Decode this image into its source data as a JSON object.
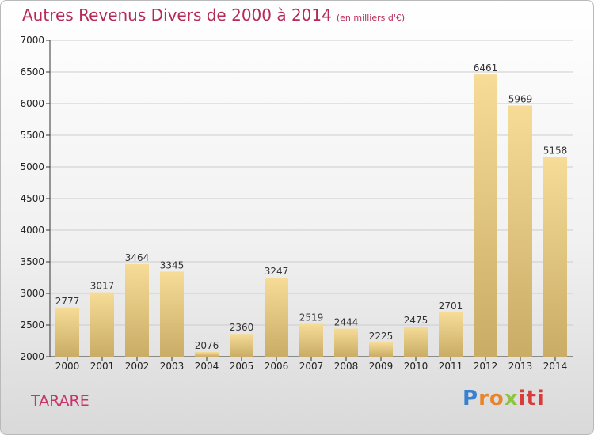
{
  "title": "Autres Revenus Divers de 2000 à 2014",
  "subtitle": "(en milliers d'€)",
  "commune": "TARARE",
  "logo": "Proxiti",
  "colors": {
    "title": "#b62b56",
    "bar_light": "#f6dc97",
    "bar_dark": "#c9ac66",
    "axis": "#333333",
    "grid": "#cccccc",
    "logo_p": "#3a7fd0",
    "logo_ro": "#e8852a",
    "logo_x": "#8cc63f",
    "logo_iti": "#d93a3a"
  },
  "chart_data": {
    "type": "bar",
    "title": "Autres Revenus Divers de 2000 à 2014",
    "categories": [
      "2000",
      "2001",
      "2002",
      "2003",
      "2004",
      "2005",
      "2006",
      "2007",
      "2008",
      "2009",
      "2010",
      "2011",
      "2012",
      "2013",
      "2014"
    ],
    "values": [
      2777,
      3017,
      3464,
      3345,
      2076,
      2360,
      3247,
      2519,
      2444,
      2225,
      2475,
      2701,
      6461,
      5969,
      5158
    ],
    "ylim": [
      2000,
      7000
    ],
    "yticks": [
      2000,
      2500,
      3000,
      3500,
      4000,
      4500,
      5000,
      5500,
      6000,
      6500,
      7000
    ],
    "grid": true,
    "xlabel": "",
    "ylabel": ""
  }
}
